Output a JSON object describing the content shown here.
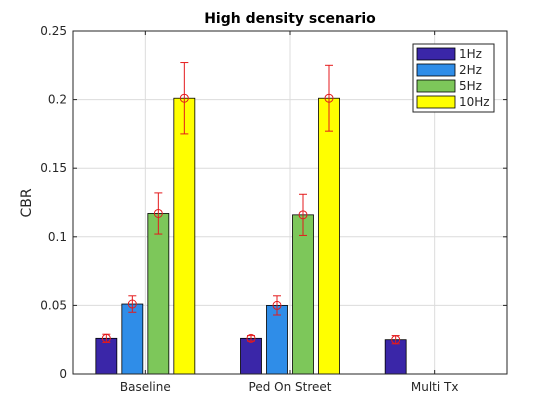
{
  "chart_data": {
    "type": "bar",
    "title": "High density scenario",
    "xlabel": "",
    "ylabel": "CBR",
    "ylim": [
      0,
      0.25
    ],
    "yticks": [
      0,
      0.05,
      0.1,
      0.15,
      0.2,
      0.25
    ],
    "ytick_labels": [
      "0",
      "0.05",
      "0.1",
      "0.15",
      "0.2",
      "0.25"
    ],
    "grid": true,
    "legend_position": "top-right",
    "categories": [
      "Baseline",
      "Ped On Street",
      "Multi Tx"
    ],
    "series": [
      {
        "name": "1Hz",
        "color": "#3a26a8",
        "values": [
          0.026,
          0.026,
          0.025
        ],
        "errors": [
          0.003,
          0.002,
          0.003
        ]
      },
      {
        "name": "2Hz",
        "color": "#2f8de8",
        "values": [
          0.051,
          0.05,
          null
        ],
        "errors": [
          0.006,
          0.007,
          null
        ]
      },
      {
        "name": "5Hz",
        "color": "#7dc75a",
        "values": [
          0.117,
          0.116,
          null
        ],
        "errors": [
          0.015,
          0.015,
          null
        ]
      },
      {
        "name": "10Hz",
        "color": "#ffff00",
        "values": [
          0.201,
          0.201,
          null
        ],
        "errors": [
          0.026,
          0.024,
          null
        ]
      }
    ],
    "errorbar_color": "#e41a1c"
  }
}
